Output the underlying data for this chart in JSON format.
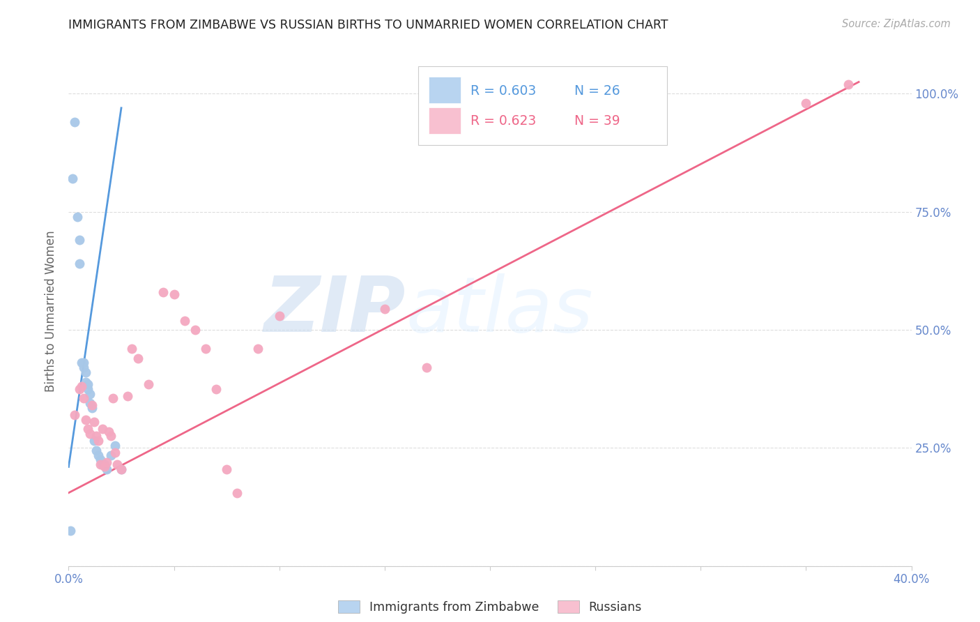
{
  "title": "IMMIGRANTS FROM ZIMBABWE VS RUSSIAN BIRTHS TO UNMARRIED WOMEN CORRELATION CHART",
  "source": "Source: ZipAtlas.com",
  "ylabel": "Births to Unmarried Women",
  "xlim": [
    0.0,
    0.4
  ],
  "ylim": [
    0.0,
    1.08
  ],
  "blue_color": "#a8c8e8",
  "pink_color": "#f4a8c0",
  "blue_line_color": "#5599dd",
  "pink_line_color": "#ee6688",
  "r_blue": "0.603",
  "n_blue": "26",
  "r_pink": "0.623",
  "n_pink": "39",
  "watermark": "ZIPatlas",
  "blue_scatter_x": [
    0.001,
    0.002,
    0.003,
    0.004,
    0.005,
    0.005,
    0.006,
    0.007,
    0.007,
    0.008,
    0.008,
    0.009,
    0.009,
    0.01,
    0.01,
    0.011,
    0.012,
    0.013,
    0.014,
    0.015,
    0.016,
    0.017,
    0.018,
    0.02,
    0.022,
    0.025
  ],
  "blue_scatter_y": [
    0.075,
    0.82,
    0.94,
    0.74,
    0.69,
    0.64,
    0.43,
    0.43,
    0.42,
    0.41,
    0.39,
    0.385,
    0.375,
    0.365,
    0.345,
    0.335,
    0.265,
    0.245,
    0.235,
    0.225,
    0.215,
    0.215,
    0.205,
    0.235,
    0.255,
    0.205
  ],
  "pink_scatter_x": [
    0.003,
    0.005,
    0.006,
    0.007,
    0.008,
    0.009,
    0.01,
    0.011,
    0.012,
    0.013,
    0.014,
    0.015,
    0.016,
    0.017,
    0.018,
    0.019,
    0.02,
    0.021,
    0.022,
    0.023,
    0.025,
    0.028,
    0.03,
    0.033,
    0.038,
    0.045,
    0.05,
    0.055,
    0.06,
    0.065,
    0.07,
    0.075,
    0.08,
    0.09,
    0.1,
    0.15,
    0.17,
    0.35,
    0.37
  ],
  "pink_scatter_y": [
    0.32,
    0.375,
    0.38,
    0.355,
    0.31,
    0.29,
    0.28,
    0.34,
    0.305,
    0.275,
    0.265,
    0.215,
    0.29,
    0.21,
    0.22,
    0.285,
    0.275,
    0.355,
    0.24,
    0.215,
    0.205,
    0.36,
    0.46,
    0.44,
    0.385,
    0.58,
    0.575,
    0.52,
    0.5,
    0.46,
    0.375,
    0.205,
    0.155,
    0.46,
    0.53,
    0.545,
    0.42,
    0.98,
    1.02
  ],
  "blue_trend_x": [
    0.0,
    0.025
  ],
  "blue_trend_y": [
    0.21,
    0.97
  ],
  "pink_trend_x": [
    0.0,
    0.375
  ],
  "pink_trend_y": [
    0.155,
    1.025
  ],
  "grid_color": "#dddddd",
  "bg_color": "#ffffff",
  "title_color": "#222222",
  "tick_color": "#6688cc",
  "legend_blue_fill": "#b8d4f0",
  "legend_pink_fill": "#f8c0d0"
}
